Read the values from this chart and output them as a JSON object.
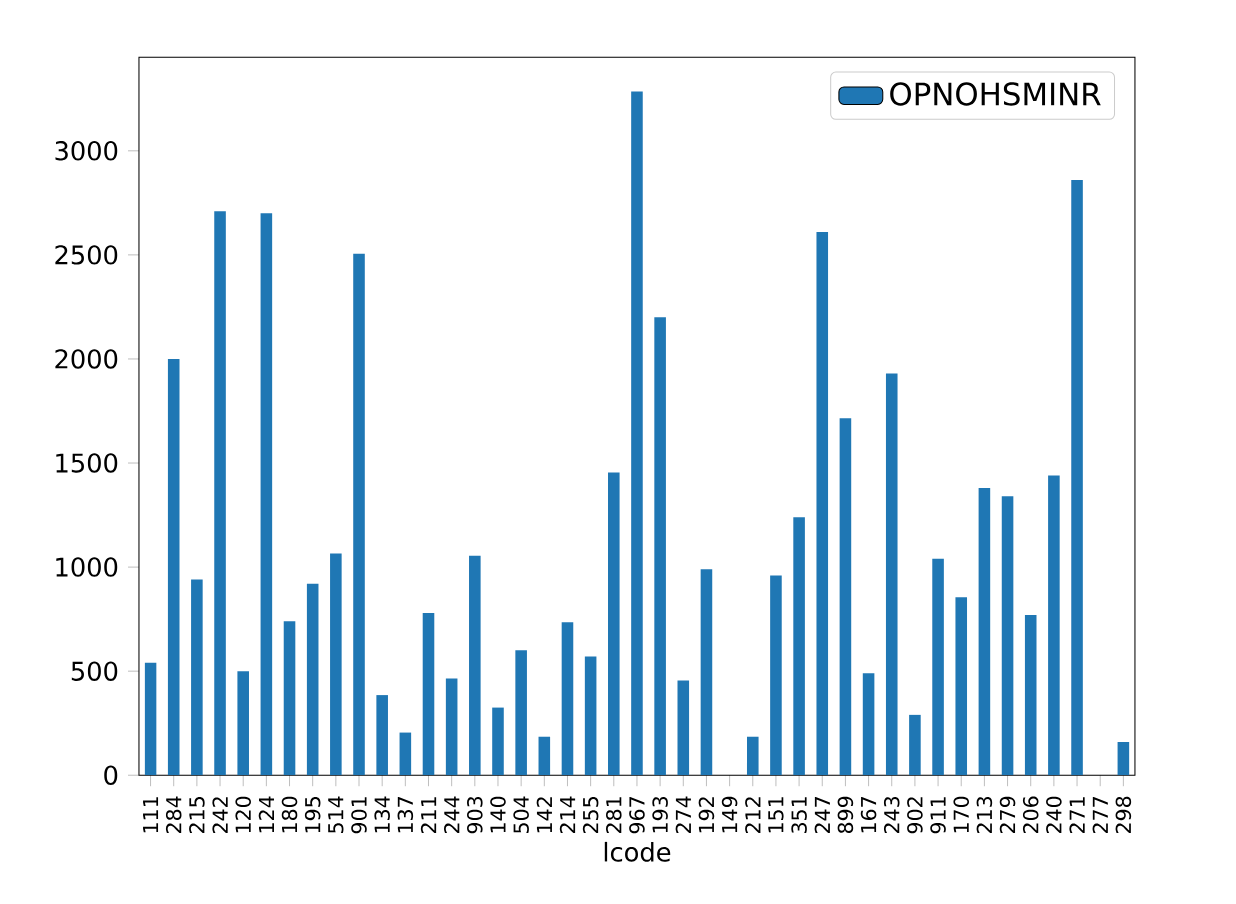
{
  "chart_data": {
    "type": "bar",
    "xlabel": "lcode",
    "categories": [
      "111",
      "284",
      "215",
      "242",
      "120",
      "124",
      "180",
      "195",
      "514",
      "901",
      "134",
      "137",
      "211",
      "244",
      "903",
      "140",
      "504",
      "142",
      "214",
      "255",
      "281",
      "967",
      "193",
      "274",
      "192",
      "149",
      "212",
      "151",
      "351",
      "247",
      "899",
      "167",
      "243",
      "902",
      "911",
      "170",
      "213",
      "279",
      "206",
      "240",
      "271",
      "277",
      "298"
    ],
    "series": [
      {
        "name": "OPNOHSMINR",
        "color": "#1f77b4",
        "values": [
          540,
          2000,
          940,
          2710,
          500,
          2700,
          740,
          920,
          1065,
          2505,
          385,
          205,
          780,
          465,
          1055,
          325,
          600,
          185,
          735,
          570,
          1455,
          3285,
          2200,
          455,
          990,
          0,
          185,
          960,
          1240,
          2610,
          1715,
          490,
          1930,
          290,
          1040,
          855,
          1380,
          1340,
          770,
          1440,
          2860,
          0,
          160
        ]
      }
    ],
    "ylim": [
      0,
      3450
    ],
    "yticks": [
      0,
      500,
      1000,
      1500,
      2000,
      2500,
      3000
    ],
    "legend": "top right",
    "grid": false
  }
}
